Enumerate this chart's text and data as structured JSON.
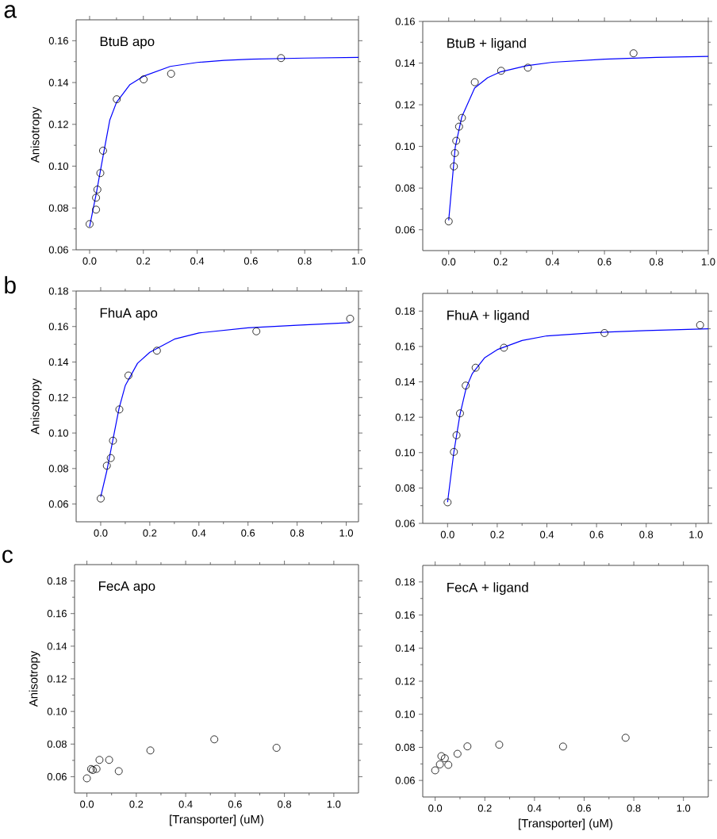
{
  "chart_data": [
    {
      "type": "scatter",
      "title": "BtuB apo",
      "ylabel": "Anisotropy",
      "annotations": [
        "a"
      ],
      "xlim": [
        -0.05,
        1.0
      ],
      "ylim": [
        0.06,
        0.17
      ],
      "xticks": [
        {
          "value": 0,
          "label": "0.0"
        },
        {
          "value": 0.2,
          "label": "0.2"
        },
        {
          "value": 0.4,
          "label": "0.4"
        },
        {
          "value": 0.6,
          "label": "0.6"
        },
        {
          "value": 0.8,
          "label": "0.8"
        },
        {
          "value": 1.0,
          "label": "1.0"
        }
      ],
      "yticks": [
        {
          "value": 0.06,
          "label": "0.06"
        },
        {
          "value": 0.08,
          "label": "0.08"
        },
        {
          "value": 0.1,
          "label": "0.10"
        },
        {
          "value": 0.12,
          "label": "0.12"
        },
        {
          "value": 0.14,
          "label": "0.14"
        },
        {
          "value": 0.16,
          "label": "0.16"
        }
      ],
      "series": [
        {
          "type": "scatter",
          "marker": "circle",
          "color": "#000000",
          "x": [
            0,
            0.024,
            0.024,
            0.029,
            0.04,
            0.05,
            0.101,
            0.201,
            0.303,
            0.712
          ],
          "values": [
            0.0723,
            0.0792,
            0.0849,
            0.0888,
            0.0967,
            0.1074,
            0.132,
            0.1415,
            0.1442,
            0.1517
          ]
        },
        {
          "type": "line",
          "marker": "none",
          "color": "#0000ff",
          "x": [
            0,
            0.025,
            0.05,
            0.075,
            0.1,
            0.15,
            0.2,
            0.3,
            0.4,
            0.5,
            0.6,
            0.8,
            1.0
          ],
          "values": [
            0.071,
            0.087,
            0.1047,
            0.122,
            0.1305,
            0.139,
            0.143,
            0.1477,
            0.1496,
            0.1506,
            0.1512,
            0.1517,
            0.152
          ]
        }
      ]
    },
    {
      "type": "scatter",
      "title": "BtuB + ligand",
      "xlim": [
        -0.1,
        1.0
      ],
      "ylim": [
        0.05,
        0.16
      ],
      "xticks": [
        {
          "value": 0,
          "label": "0.0"
        },
        {
          "value": 0.2,
          "label": "0.2"
        },
        {
          "value": 0.4,
          "label": "0.4"
        },
        {
          "value": 0.6,
          "label": "0.6"
        },
        {
          "value": 0.8,
          "label": "0.8"
        },
        {
          "value": 1.0,
          "label": "1.0"
        }
      ],
      "yticks": [
        {
          "value": 0.06,
          "label": "0.06"
        },
        {
          "value": 0.08,
          "label": "0.08"
        },
        {
          "value": 0.1,
          "label": "0.10"
        },
        {
          "value": 0.12,
          "label": "0.12"
        },
        {
          "value": 0.14,
          "label": "0.14"
        },
        {
          "value": 0.16,
          "label": "0.16"
        }
      ],
      "series": [
        {
          "type": "scatter",
          "marker": "circle",
          "color": "#000000",
          "x": [
            0,
            0.02,
            0.024,
            0.029,
            0.04,
            0.051,
            0.1005,
            0.202,
            0.305,
            0.712
          ],
          "values": [
            0.064,
            0.0904,
            0.0968,
            0.1027,
            0.1095,
            0.1137,
            0.1308,
            0.1363,
            0.1378,
            0.1447
          ]
        },
        {
          "type": "line",
          "marker": "none",
          "color": "#0000ff",
          "x": [
            0,
            0.025,
            0.05,
            0.1,
            0.15,
            0.2,
            0.3,
            0.4,
            0.6,
            0.8,
            1.0
          ],
          "values": [
            0.0645,
            0.0995,
            0.114,
            0.128,
            0.133,
            0.1358,
            0.1387,
            0.1404,
            0.1419,
            0.1427,
            0.1432
          ]
        }
      ]
    },
    {
      "type": "scatter",
      "title": "FhuA apo",
      "ylabel": "Anisotropy",
      "annotations": [
        "b"
      ],
      "xlim": [
        -0.1,
        1.05
      ],
      "ylim": [
        0.05,
        0.18
      ],
      "xticks": [
        {
          "value": 0,
          "label": "0.0"
        },
        {
          "value": 0.2,
          "label": "0.2"
        },
        {
          "value": 0.4,
          "label": "0.4"
        },
        {
          "value": 0.6,
          "label": "0.6"
        },
        {
          "value": 0.8,
          "label": "0.8"
        },
        {
          "value": 1.0,
          "label": "1.0"
        }
      ],
      "yticks": [
        {
          "value": 0.06,
          "label": "0.06"
        },
        {
          "value": 0.08,
          "label": "0.08"
        },
        {
          "value": 0.1,
          "label": "0.10"
        },
        {
          "value": 0.12,
          "label": "0.12"
        },
        {
          "value": 0.14,
          "label": "0.14"
        },
        {
          "value": 0.16,
          "label": "0.16"
        },
        {
          "value": 0.18,
          "label": "0.18"
        }
      ],
      "series": [
        {
          "type": "scatter",
          "marker": "circle",
          "color": "#000000",
          "x": [
            0,
            0.025,
            0.041,
            0.05,
            0.076,
            0.113,
            0.229,
            0.634,
            1.016
          ],
          "values": [
            0.0631,
            0.0816,
            0.0859,
            0.0957,
            0.1133,
            0.1324,
            0.1464,
            0.1573,
            0.1644
          ]
        },
        {
          "type": "line",
          "marker": "none",
          "color": "#0000ff",
          "x": [
            0,
            0.025,
            0.05,
            0.075,
            0.1,
            0.15,
            0.2,
            0.3,
            0.4,
            0.6,
            0.8,
            1.016
          ],
          "values": [
            0.064,
            0.0787,
            0.0964,
            0.114,
            0.1267,
            0.1393,
            0.1455,
            0.1529,
            0.1564,
            0.1593,
            0.1607,
            0.1622
          ]
        }
      ]
    },
    {
      "type": "scatter",
      "title": "FhuA + ligand",
      "xlim": [
        -0.1,
        1.05
      ],
      "ylim": [
        0.06,
        0.19
      ],
      "xticks": [
        {
          "value": 0,
          "label": "0.0"
        },
        {
          "value": 0.2,
          "label": "0.2"
        },
        {
          "value": 0.4,
          "label": "0.4"
        },
        {
          "value": 0.6,
          "label": "0.6"
        },
        {
          "value": 0.8,
          "label": "0.8"
        },
        {
          "value": 1.0,
          "label": "1.0"
        }
      ],
      "yticks": [
        {
          "value": 0.06,
          "label": "0.06"
        },
        {
          "value": 0.08,
          "label": "0.08"
        },
        {
          "value": 0.1,
          "label": "0.10"
        },
        {
          "value": 0.12,
          "label": "0.12"
        },
        {
          "value": 0.14,
          "label": "0.14"
        },
        {
          "value": 0.16,
          "label": "0.16"
        },
        {
          "value": 0.18,
          "label": "0.18"
        }
      ],
      "series": [
        {
          "type": "scatter",
          "marker": "circle",
          "color": "#000000",
          "x": [
            0,
            0.0255,
            0.036,
            0.05,
            0.073,
            0.113,
            0.227,
            0.632,
            1.017
          ],
          "values": [
            0.0719,
            0.1004,
            0.1098,
            0.1222,
            0.1379,
            0.148,
            0.1593,
            0.1676,
            0.1721
          ]
        },
        {
          "type": "line",
          "marker": "none",
          "color": "#0000ff",
          "x": [
            0,
            0.025,
            0.05,
            0.075,
            0.1,
            0.15,
            0.2,
            0.3,
            0.4,
            0.6,
            0.8,
            1.05
          ],
          "values": [
            0.072,
            0.1,
            0.1216,
            0.1366,
            0.1448,
            0.1537,
            0.1582,
            0.1634,
            0.166,
            0.1679,
            0.169,
            0.17
          ]
        }
      ]
    },
    {
      "type": "scatter",
      "title": "FecA apo",
      "ylabel": "Anisotropy",
      "xlabel": "[Transporter] (uM)",
      "annotations": [
        "c"
      ],
      "xlim": [
        -0.05,
        1.1
      ],
      "ylim": [
        0.05,
        0.19
      ],
      "xticks": [
        {
          "value": 0,
          "label": "0.0"
        },
        {
          "value": 0.2,
          "label": "0.2"
        },
        {
          "value": 0.4,
          "label": "0.4"
        },
        {
          "value": 0.6,
          "label": "0.6"
        },
        {
          "value": 0.8,
          "label": "0.8"
        },
        {
          "value": 1.0,
          "label": "1.0"
        }
      ],
      "yticks": [
        {
          "value": 0.06,
          "label": "0.06"
        },
        {
          "value": 0.08,
          "label": "0.08"
        },
        {
          "value": 0.1,
          "label": "0.10"
        },
        {
          "value": 0.12,
          "label": "0.12"
        },
        {
          "value": 0.14,
          "label": "0.14"
        },
        {
          "value": 0.16,
          "label": "0.16"
        },
        {
          "value": 0.18,
          "label": "0.18"
        }
      ],
      "series": [
        {
          "type": "scatter",
          "marker": "circle",
          "color": "#000000",
          "x": [
            0,
            0.017,
            0.024,
            0.039,
            0.051,
            0.09,
            0.129,
            0.257,
            0.516,
            0.768
          ],
          "values": [
            0.059,
            0.0647,
            0.0641,
            0.0648,
            0.0703,
            0.0703,
            0.0634,
            0.0761,
            0.0829,
            0.0777
          ]
        }
      ]
    },
    {
      "type": "scatter",
      "title": "FecA + ligand",
      "xlabel": "[Transporter] (uM)",
      "xlim": [
        -0.05,
        1.1
      ],
      "ylim": [
        0.05,
        0.19
      ],
      "xticks": [
        {
          "value": 0,
          "label": "0.0"
        },
        {
          "value": 0.2,
          "label": "0.2"
        },
        {
          "value": 0.4,
          "label": "0.4"
        },
        {
          "value": 0.6,
          "label": "0.6"
        },
        {
          "value": 0.8,
          "label": "0.8"
        },
        {
          "value": 1.0,
          "label": "1.0"
        }
      ],
      "yticks": [
        {
          "value": 0.06,
          "label": "0.06"
        },
        {
          "value": 0.08,
          "label": "0.08"
        },
        {
          "value": 0.1,
          "label": "0.10"
        },
        {
          "value": 0.12,
          "label": "0.12"
        },
        {
          "value": 0.14,
          "label": "0.14"
        },
        {
          "value": 0.16,
          "label": "0.16"
        },
        {
          "value": 0.18,
          "label": "0.18"
        }
      ],
      "series": [
        {
          "type": "scatter",
          "marker": "circle",
          "color": "#000000",
          "x": [
            0,
            0.019,
            0.025,
            0.039,
            0.053,
            0.09,
            0.13,
            0.258,
            0.515,
            0.767
          ],
          "values": [
            0.0661,
            0.0697,
            0.0747,
            0.0734,
            0.0694,
            0.0761,
            0.0806,
            0.0816,
            0.0805,
            0.0858
          ]
        }
      ]
    }
  ]
}
